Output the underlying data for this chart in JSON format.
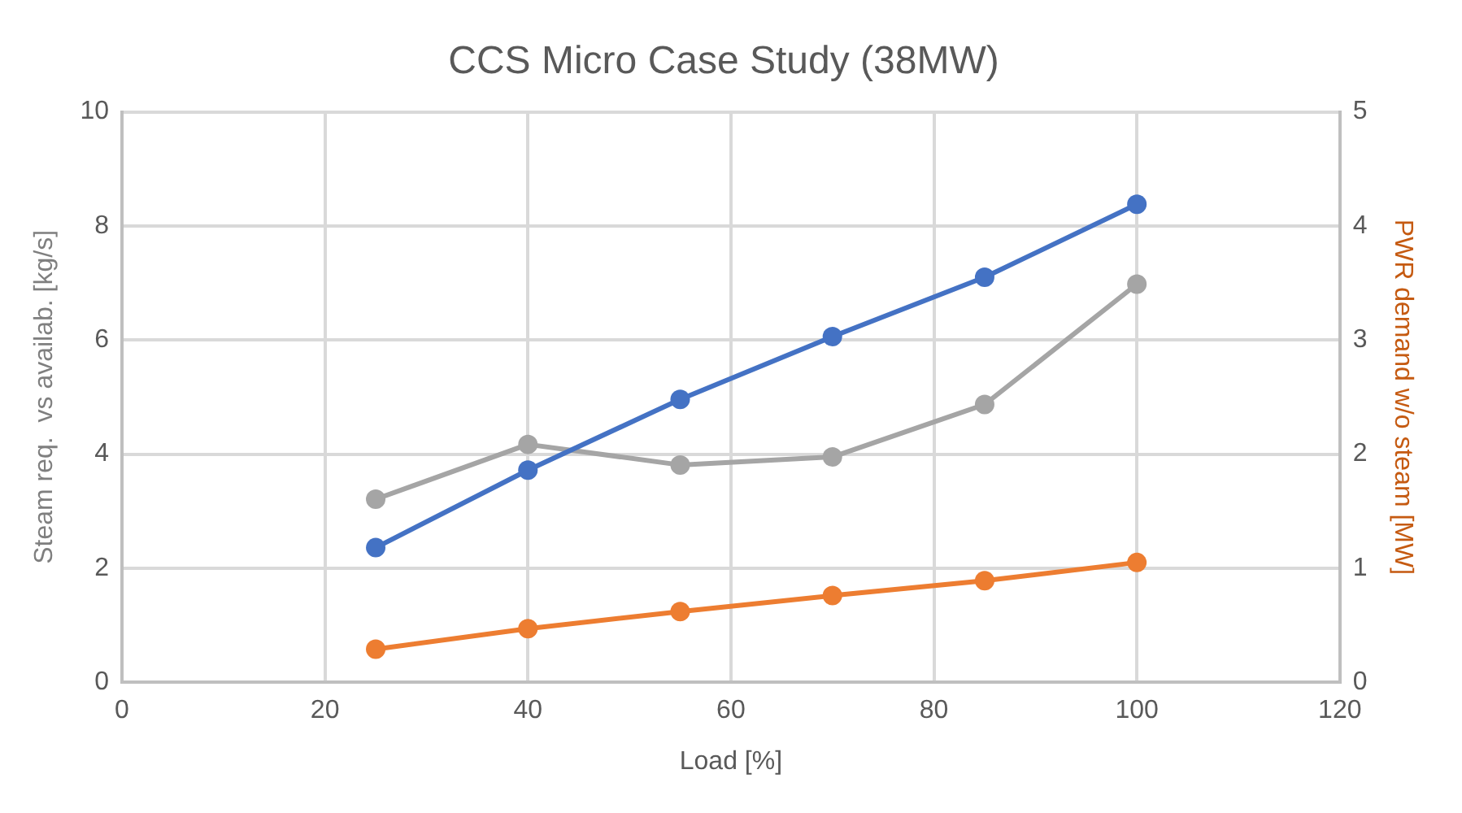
{
  "chart_data": {
    "type": "line",
    "title": "CCS Micro Case Study (38MW)",
    "xlabel": "Load [%]",
    "ylabel": "Steam req.  vs availab. [kg/s]",
    "y2label": "PWR demand w/o steam [MW]",
    "x": [
      25,
      40,
      55,
      70,
      85,
      100
    ],
    "series": [
      {
        "color": "#4472c4",
        "values": [
          2.36,
          3.72,
          4.96,
          6.06,
          7.1,
          8.38
        ]
      },
      {
        "color": "#a5a5a5",
        "values": [
          3.21,
          4.17,
          3.81,
          3.95,
          4.87,
          6.98
        ]
      },
      {
        "color": "#ed7d31",
        "axis": "y2",
        "values": [
          0.29,
          0.47,
          0.62,
          0.76,
          0.89,
          1.05
        ]
      }
    ],
    "xlim": [
      0,
      120
    ],
    "xticks": [
      0,
      20,
      40,
      60,
      80,
      100,
      120
    ],
    "ylim": [
      0,
      10
    ],
    "yticks": [
      0,
      2,
      4,
      6,
      8,
      10
    ],
    "y2lim": [
      0,
      5
    ],
    "y2ticks": [
      0,
      1,
      2,
      3,
      4,
      5
    ],
    "grid": true,
    "legend": false,
    "marker": "circle",
    "line_style": "solid"
  }
}
